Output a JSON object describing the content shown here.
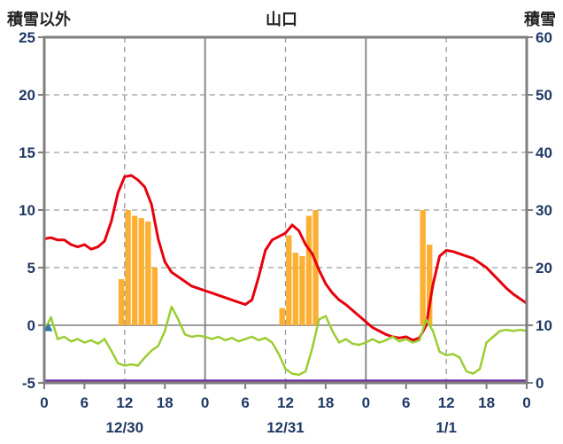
{
  "header": {
    "left_axis_title": "積雪以外",
    "chart_title": "山口",
    "right_axis_title": "積雪"
  },
  "colors": {
    "frame": "#7f7f7f",
    "grid": "#9a9a9a",
    "zero_line": "#7f7f7f",
    "tick_text": "#1F3864",
    "red_line": "#e8000d",
    "green_line": "#9acd32",
    "orange_bars": "#FBB034",
    "purple_line": "#7030a0",
    "blue_marker": "#2779AD"
  },
  "chart_data": {
    "type": "line",
    "title": "山口",
    "left_axis": {
      "label": "積雪以外",
      "min": -5,
      "max": 25,
      "ticks": [
        25,
        20,
        15,
        10,
        5,
        0,
        -5
      ]
    },
    "right_axis": {
      "label": "積雪",
      "min": 0,
      "max": 60,
      "ticks": [
        60,
        50,
        40,
        30,
        20,
        10,
        0
      ]
    },
    "x_axis": {
      "hours_total": 72,
      "tick_step": 6,
      "tick_labels": [
        "0",
        "6",
        "12",
        "18",
        "0",
        "6",
        "12",
        "18",
        "0",
        "6",
        "12",
        "18",
        "0"
      ],
      "day_labels": [
        "12/30",
        "12/31",
        "1/1"
      ]
    },
    "grid": {
      "h_dashed": [
        20,
        15,
        10,
        5
      ],
      "h_solid": [
        0
      ],
      "v_solid_hours": [
        24,
        48
      ],
      "v_dashed_hours": [
        12,
        36,
        60
      ]
    },
    "series": [
      {
        "name": "red-line",
        "type": "line",
        "axis": "left",
        "color": "#e8000d",
        "width": 3,
        "values": [
          7.5,
          7.6,
          7.4,
          7.4,
          7.0,
          6.8,
          7.0,
          6.6,
          6.8,
          7.3,
          9.0,
          11.5,
          12.9,
          13.0,
          12.6,
          12.0,
          10.5,
          7.5,
          5.5,
          4.6,
          4.2,
          3.8,
          3.4,
          3.2,
          3.0,
          2.8,
          2.6,
          2.4,
          2.2,
          2.0,
          1.8,
          2.2,
          4.2,
          6.5,
          7.4,
          7.7,
          8.0,
          8.7,
          8.2,
          7.0,
          6.2,
          4.8,
          3.6,
          2.8,
          2.2,
          1.8,
          1.3,
          0.8,
          0.3,
          -0.2,
          -0.5,
          -0.8,
          -1.0,
          -1.1,
          -1.0,
          -1.3,
          -1.1,
          0.0,
          3.5,
          6.0,
          6.5,
          6.4,
          6.2,
          6.0,
          5.8,
          5.4,
          5.0,
          4.4,
          3.8,
          3.2,
          2.7,
          2.3,
          1.9
        ]
      },
      {
        "name": "green-line",
        "type": "line",
        "axis": "left",
        "color": "#9acd32",
        "width": 2.5,
        "values": [
          -0.5,
          0.7,
          -1.2,
          -1.0,
          -1.4,
          -1.2,
          -1.5,
          -1.3,
          -1.6,
          -1.2,
          -2.2,
          -3.3,
          -3.5,
          -3.4,
          -3.5,
          -2.8,
          -2.2,
          -1.8,
          -0.5,
          1.6,
          0.5,
          -0.8,
          -1.0,
          -0.9,
          -1.0,
          -1.2,
          -1.0,
          -1.3,
          -1.1,
          -1.4,
          -1.2,
          -1.0,
          -1.3,
          -1.1,
          -1.5,
          -2.5,
          -3.8,
          -4.2,
          -4.3,
          -4.0,
          -2.0,
          0.5,
          0.8,
          -0.5,
          -1.5,
          -1.2,
          -1.6,
          -1.7,
          -1.5,
          -1.2,
          -1.5,
          -1.3,
          -1.0,
          -1.4,
          -1.2,
          -1.5,
          -1.3,
          0.5,
          -0.5,
          -2.3,
          -2.6,
          -2.5,
          -2.8,
          -4.0,
          -4.2,
          -3.8,
          -1.5,
          -1.0,
          -0.5,
          -0.4,
          -0.5,
          -0.4,
          -0.5
        ]
      },
      {
        "name": "purple-line",
        "type": "line",
        "axis": "right",
        "color": "#7030a0",
        "width": 2.5,
        "constant": 0
      }
    ],
    "bars": {
      "name": "orange-bars",
      "axis": "left",
      "color": "#FBB034",
      "points": [
        {
          "hour": 11,
          "value": 4.0
        },
        {
          "hour": 12,
          "value": 10.0
        },
        {
          "hour": 13,
          "value": 9.5
        },
        {
          "hour": 14,
          "value": 9.3
        },
        {
          "hour": 15,
          "value": 9.0
        },
        {
          "hour": 16,
          "value": 5.0
        },
        {
          "hour": 35,
          "value": 1.5
        },
        {
          "hour": 36,
          "value": 7.8
        },
        {
          "hour": 37,
          "value": 6.3
        },
        {
          "hour": 38,
          "value": 6.0
        },
        {
          "hour": 39,
          "value": 9.5
        },
        {
          "hour": 40,
          "value": 10.0
        },
        {
          "hour": 56,
          "value": 10.0
        },
        {
          "hour": 57,
          "value": 7.0
        }
      ]
    },
    "marker": {
      "name": "blue-triangle-marker",
      "color": "#2779AD",
      "hour": 0.6,
      "value": -0.2
    }
  }
}
